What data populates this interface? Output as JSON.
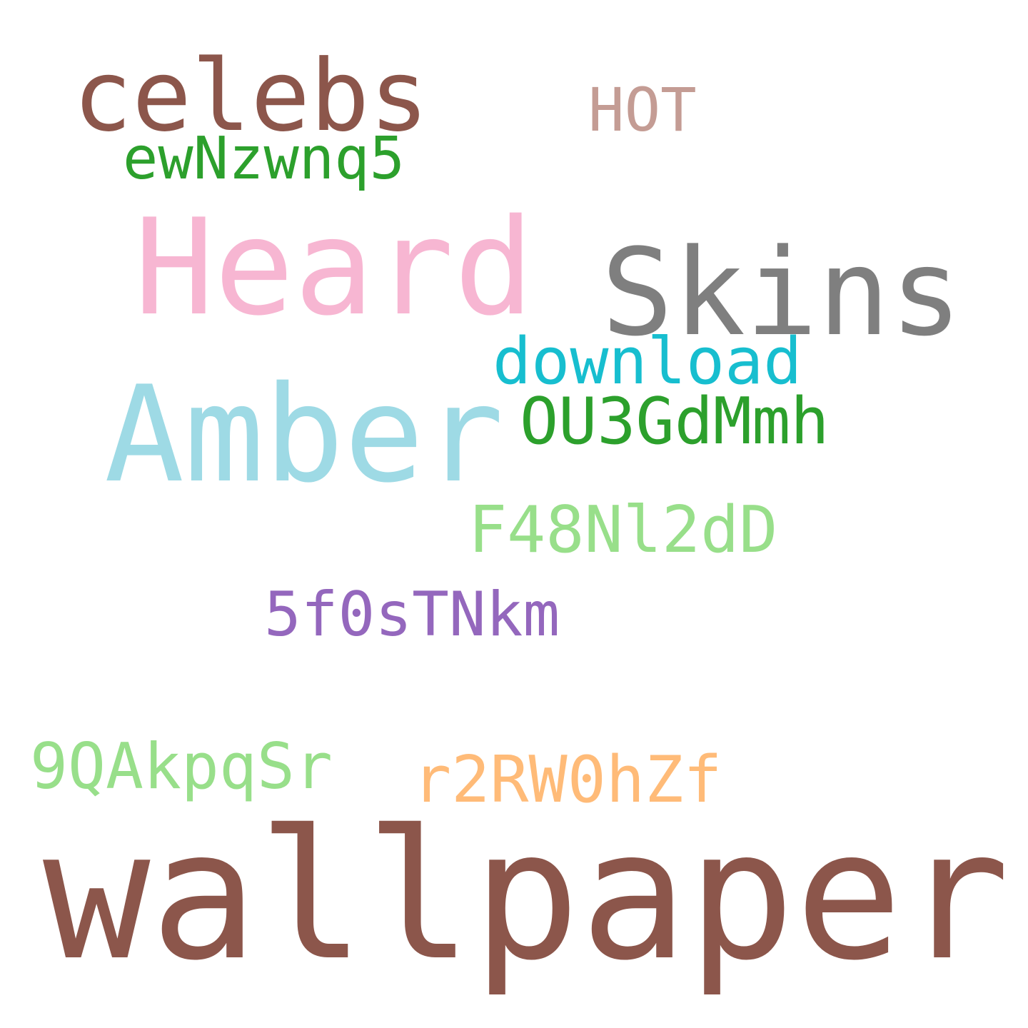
{
  "words": {
    "celebs": {
      "text": "celebs",
      "color": "#8c564b"
    },
    "hot": {
      "text": "HOT",
      "color": "#c49c94"
    },
    "ewn": {
      "text": "ewNzwnq5",
      "color": "#2ca02c"
    },
    "heard": {
      "text": "Heard",
      "color": "#f7b6d2"
    },
    "skins": {
      "text": "Skins",
      "color": "#7f7f7f"
    },
    "download": {
      "text": "download",
      "color": "#17becf"
    },
    "amber": {
      "text": "Amber",
      "color": "#9edae5"
    },
    "ou3": {
      "text": "OU3GdMmh",
      "color": "#2ca02c"
    },
    "f48": {
      "text": "F48Nl2dD",
      "color": "#98df8a"
    },
    "fivef": {
      "text": "5f0sTNkm",
      "color": "#9467bd"
    },
    "nineq": {
      "text": "9QAkpqSr",
      "color": "#98df8a"
    },
    "r2r": {
      "text": "r2RW0hZf",
      "color": "#ffbb78"
    },
    "wallpaper": {
      "text": "wallpaper",
      "color": "#8c564b"
    }
  }
}
